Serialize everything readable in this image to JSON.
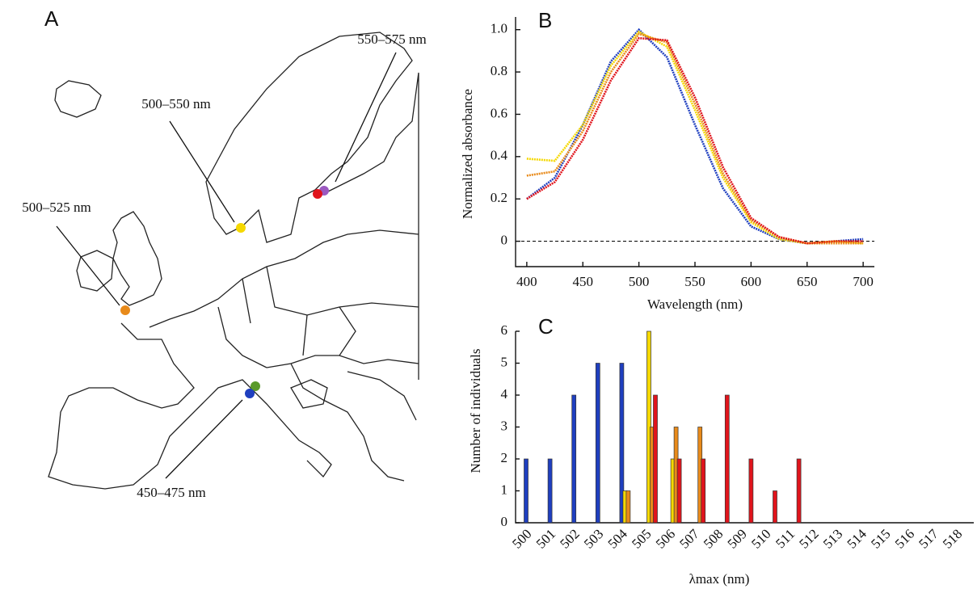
{
  "map": {
    "panel_label": "A",
    "labels": [
      "550–575 nm",
      "500–550 nm",
      "500–525 nm",
      "450–475 nm"
    ]
  },
  "chart_data": [
    {
      "type": "line",
      "panel_label": "B",
      "x_label": "Wavelength (nm)",
      "y_label": "Normalized absorbance",
      "x": [
        400,
        425,
        450,
        475,
        500,
        525,
        550,
        575,
        600,
        625,
        650,
        675,
        700
      ],
      "series": [
        {
          "color": "#1f3fbf",
          "values": [
            0.2,
            0.3,
            0.55,
            0.85,
            1.0,
            0.87,
            0.55,
            0.25,
            0.07,
            0.01,
            -0.01,
            0,
            0.01
          ]
        },
        {
          "color": "#f5d800",
          "values": [
            0.39,
            0.38,
            0.55,
            0.83,
            0.99,
            0.92,
            0.62,
            0.3,
            0.09,
            0.01,
            -0.01,
            0,
            -0.01
          ]
        },
        {
          "color": "#e88a1a",
          "values": [
            0.31,
            0.33,
            0.52,
            0.8,
            0.98,
            0.94,
            0.65,
            0.32,
            0.1,
            0.02,
            -0.01,
            -0.01,
            -0.01
          ]
        },
        {
          "color": "#e0141c",
          "values": [
            0.2,
            0.28,
            0.48,
            0.76,
            0.96,
            0.95,
            0.68,
            0.35,
            0.11,
            0.02,
            -0.01,
            0,
            0
          ]
        }
      ],
      "xlim": [
        390,
        710
      ],
      "xticks": [
        400,
        450,
        500,
        550,
        600,
        650,
        700
      ],
      "ylim": [
        -0.12,
        1.06
      ],
      "yticks": [
        0,
        0.2,
        0.4,
        0.6,
        0.8,
        {
          "value": 1,
          "label": "1.0"
        }
      ],
      "zero_line": true
    },
    {
      "type": "bar",
      "panel_label": "C",
      "x_label": "λmax (nm)",
      "y_label": "Number of individuals",
      "categories": [
        "500",
        "501",
        "502",
        "503",
        "504",
        "505",
        "506",
        "507",
        "508",
        "509",
        "510",
        "511",
        "512",
        "513",
        "514",
        "515",
        "516",
        "517",
        "518"
      ],
      "series": [
        {
          "color": "#1f3fbf",
          "values": [
            2,
            2,
            4,
            5,
            5,
            null,
            null,
            null,
            null,
            null,
            null,
            null,
            null,
            null,
            null,
            null,
            null,
            null,
            null
          ]
        },
        {
          "color": "#f5d800",
          "values": [
            null,
            null,
            null,
            null,
            1,
            6,
            2,
            null,
            null,
            null,
            null,
            null,
            null,
            null,
            null,
            null,
            null,
            null,
            null
          ]
        },
        {
          "color": "#e88a1a",
          "values": [
            null,
            null,
            null,
            null,
            1,
            3,
            3,
            3,
            null,
            null,
            null,
            null,
            null,
            null,
            null,
            null,
            null,
            null,
            null
          ]
        },
        {
          "color": "#e0141c",
          "values": [
            null,
            null,
            null,
            null,
            null,
            4,
            2,
            2,
            4,
            2,
            1,
            2,
            null,
            null,
            null,
            null,
            null,
            null,
            null
          ]
        }
      ],
      "ylim": [
        0,
        6
      ],
      "yticks": [
        0,
        1,
        2,
        3,
        4,
        5,
        6
      ]
    }
  ]
}
